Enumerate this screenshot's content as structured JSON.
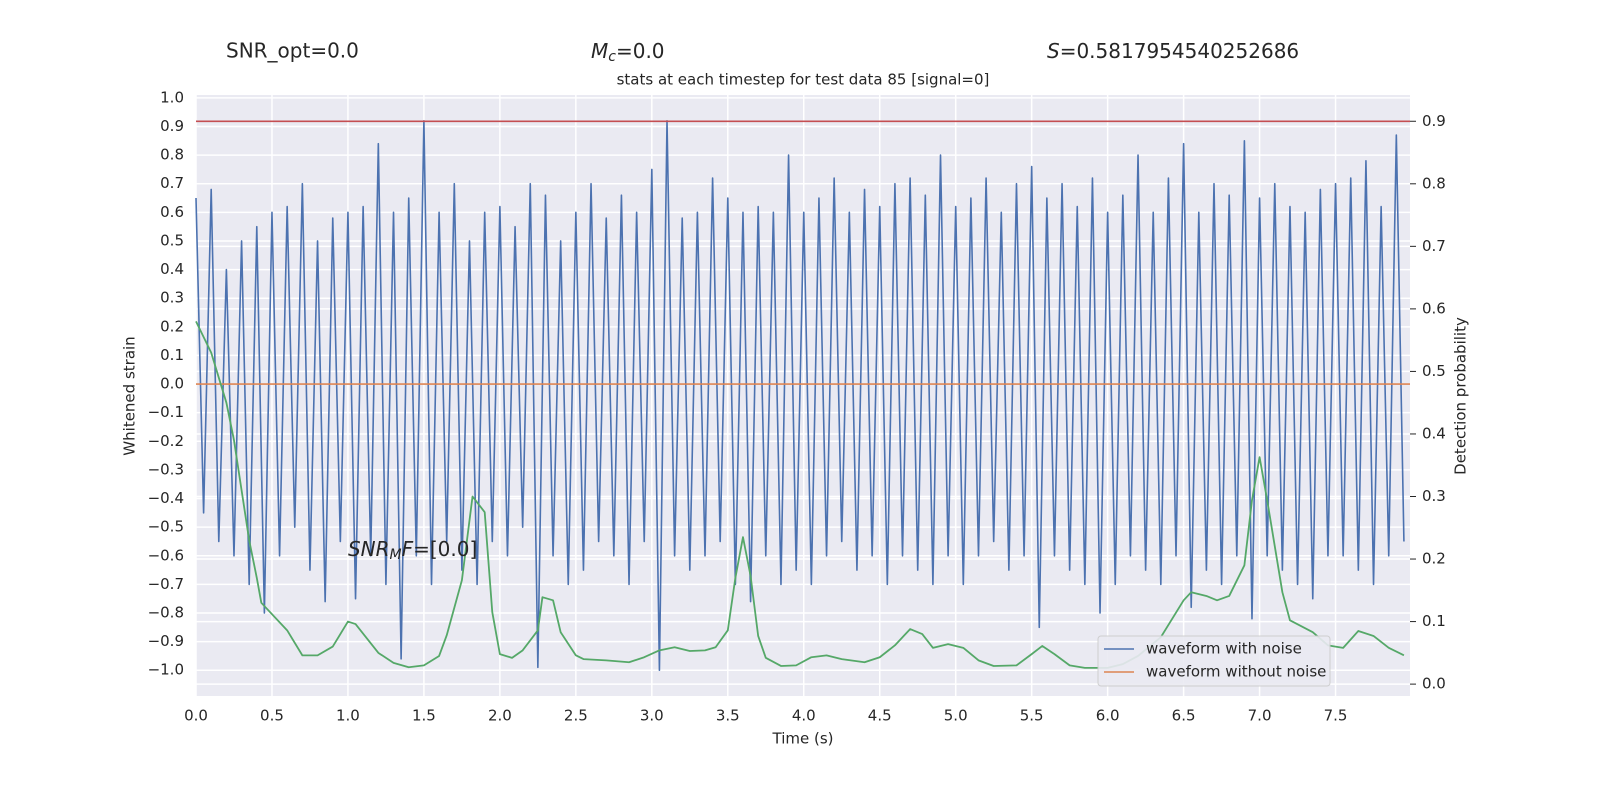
{
  "chart_data": {
    "type": "line",
    "title": "stats at each timestep for test data 85 [signal=0]",
    "header_texts": [
      {
        "text": "SNR_opt=0.0"
      },
      {
        "math": "M",
        "sub": "c",
        "text": "=0.0"
      },
      {
        "math": "S",
        "text": "=0.5817954540252686"
      }
    ],
    "annotation": {
      "math": "SNR",
      "sub": "M",
      "math2": "F",
      "text": "=[0.0]",
      "x": 1.0,
      "y": -0.58
    },
    "x_label": "Time (s)",
    "y_label": "Whitened strain",
    "y2_label": "Detection probability",
    "xlim": [
      0,
      7.99
    ],
    "ylim": [
      -1.09,
      1.01
    ],
    "y2lim": [
      -0.019,
      0.942
    ],
    "grid": true,
    "legend": "lower right",
    "xticks": [
      {
        "value": 0,
        "label": "0.0"
      },
      {
        "value": 0.5,
        "label": "0.5"
      },
      {
        "value": 1,
        "label": "1.0"
      },
      {
        "value": 1.5,
        "label": "1.5"
      },
      {
        "value": 2,
        "label": "2.0"
      },
      {
        "value": 2.5,
        "label": "2.5"
      },
      {
        "value": 3,
        "label": "3.0"
      },
      {
        "value": 3.5,
        "label": "3.5"
      },
      {
        "value": 4,
        "label": "4.0"
      },
      {
        "value": 4.5,
        "label": "4.5"
      },
      {
        "value": 5,
        "label": "5.0"
      },
      {
        "value": 5.5,
        "label": "5.5"
      },
      {
        "value": 6,
        "label": "6.0"
      },
      {
        "value": 6.5,
        "label": "6.5"
      },
      {
        "value": 7,
        "label": "7.0"
      },
      {
        "value": 7.5,
        "label": "7.5"
      }
    ],
    "yticks": [
      {
        "value": -1,
        "label": "−1.0"
      },
      {
        "value": -0.9,
        "label": "−0.9"
      },
      {
        "value": -0.8,
        "label": "−0.8"
      },
      {
        "value": -0.7,
        "label": "−0.7"
      },
      {
        "value": -0.6,
        "label": "−0.6"
      },
      {
        "value": -0.5,
        "label": "−0.5"
      },
      {
        "value": -0.4,
        "label": "−0.4"
      },
      {
        "value": -0.3,
        "label": "−0.3"
      },
      {
        "value": -0.2,
        "label": "−0.2"
      },
      {
        "value": -0.1,
        "label": "−0.1"
      },
      {
        "value": 0,
        "label": "0.0"
      },
      {
        "value": 0.1,
        "label": "0.1"
      },
      {
        "value": 0.2,
        "label": "0.2"
      },
      {
        "value": 0.3,
        "label": "0.3"
      },
      {
        "value": 0.4,
        "label": "0.4"
      },
      {
        "value": 0.5,
        "label": "0.5"
      },
      {
        "value": 0.6,
        "label": "0.6"
      },
      {
        "value": 0.7,
        "label": "0.7"
      },
      {
        "value": 0.8,
        "label": "0.8"
      },
      {
        "value": 0.9,
        "label": "0.9"
      },
      {
        "value": 1,
        "label": "1.0"
      }
    ],
    "y2ticks": [
      {
        "value": 0,
        "label": "0.0"
      },
      {
        "value": 0.1,
        "label": "0.1"
      },
      {
        "value": 0.2,
        "label": "0.2"
      },
      {
        "value": 0.3,
        "label": "0.3"
      },
      {
        "value": 0.4,
        "label": "0.4"
      },
      {
        "value": 0.5,
        "label": "0.5"
      },
      {
        "value": 0.6,
        "label": "0.6"
      },
      {
        "value": 0.7,
        "label": "0.7"
      },
      {
        "value": 0.8,
        "label": "0.8"
      },
      {
        "value": 0.9,
        "label": "0.9"
      }
    ],
    "series": [
      {
        "name": "waveform with noise",
        "color": "#4c72b0",
        "x": [
          0,
          0.05,
          0.1,
          0.15,
          0.2,
          0.25,
          0.3,
          0.35,
          0.4,
          0.45,
          0.5,
          0.55,
          0.6,
          0.65,
          0.7,
          0.75,
          0.8,
          0.85,
          0.9,
          0.95,
          1,
          1.05,
          1.1,
          1.15,
          1.2,
          1.25,
          1.3,
          1.35,
          1.4,
          1.45,
          1.5,
          1.55,
          1.6,
          1.65,
          1.7,
          1.75,
          1.8,
          1.85,
          1.9,
          1.95,
          2,
          2.05,
          2.1,
          2.15,
          2.2,
          2.25,
          2.3,
          2.35,
          2.4,
          2.45,
          2.5,
          2.55,
          2.6,
          2.65,
          2.7,
          2.75,
          2.8,
          2.85,
          2.9,
          2.95,
          3,
          3.05,
          3.1,
          3.15,
          3.2,
          3.25,
          3.3,
          3.35,
          3.4,
          3.45,
          3.5,
          3.55,
          3.6,
          3.65,
          3.7,
          3.75,
          3.8,
          3.85,
          3.9,
          3.95,
          4,
          4.05,
          4.1,
          4.15,
          4.2,
          4.25,
          4.3,
          4.35,
          4.4,
          4.45,
          4.5,
          4.55,
          4.6,
          4.65,
          4.7,
          4.75,
          4.8,
          4.85,
          4.9,
          4.95,
          5,
          5.05,
          5.1,
          5.15,
          5.2,
          5.25,
          5.3,
          5.35,
          5.4,
          5.45,
          5.5,
          5.55,
          5.6,
          5.65,
          5.7,
          5.75,
          5.8,
          5.85,
          5.9,
          5.95,
          6,
          6.05,
          6.1,
          6.15,
          6.2,
          6.25,
          6.3,
          6.35,
          6.4,
          6.45,
          6.5,
          6.55,
          6.6,
          6.65,
          6.7,
          6.75,
          6.8,
          6.85,
          6.9,
          6.95,
          7,
          7.05,
          7.1,
          7.15,
          7.2,
          7.25,
          7.3,
          7.35,
          7.4,
          7.45,
          7.5,
          7.55,
          7.6,
          7.65,
          7.7,
          7.75,
          7.8,
          7.85,
          7.9,
          7.95
        ],
        "values": [
          0.65,
          -0.45,
          0.68,
          -0.55,
          0.4,
          -0.6,
          0.5,
          -0.7,
          0.55,
          -0.8,
          0.6,
          -0.6,
          0.62,
          -0.5,
          0.7,
          -0.65,
          0.5,
          -0.76,
          0.58,
          -0.55,
          0.6,
          -0.75,
          0.62,
          -0.6,
          0.84,
          -0.7,
          0.6,
          -0.96,
          0.65,
          -0.6,
          0.92,
          -0.7,
          0.6,
          -0.55,
          0.7,
          -0.65,
          0.5,
          -0.7,
          0.6,
          -0.55,
          0.62,
          -0.6,
          0.55,
          -0.5,
          0.7,
          -0.99,
          0.66,
          -0.6,
          0.5,
          -0.7,
          0.6,
          -0.65,
          0.7,
          -0.55,
          0.58,
          -0.6,
          0.66,
          -0.7,
          0.6,
          -0.55,
          0.75,
          -1.0,
          0.92,
          -0.6,
          0.58,
          -0.65,
          0.6,
          -0.6,
          0.72,
          -0.55,
          0.65,
          -0.7,
          0.6,
          -0.76,
          0.62,
          -0.6,
          0.6,
          -0.7,
          0.8,
          -0.65,
          0.6,
          -0.7,
          0.65,
          -0.6,
          0.72,
          -0.55,
          0.6,
          -0.65,
          0.68,
          -0.6,
          0.62,
          -0.7,
          0.7,
          -0.6,
          0.72,
          -0.65,
          0.66,
          -0.7,
          0.8,
          -0.6,
          0.62,
          -0.7,
          0.65,
          -0.6,
          0.72,
          -0.55,
          0.6,
          -0.65,
          0.7,
          -0.6,
          0.76,
          -0.85,
          0.65,
          -0.6,
          0.7,
          -0.65,
          0.62,
          -0.7,
          0.72,
          -0.8,
          0.6,
          -0.7,
          0.66,
          -0.6,
          0.8,
          -0.65,
          0.6,
          -0.7,
          0.72,
          -0.6,
          0.84,
          -0.78,
          0.6,
          -0.65,
          0.7,
          -0.7,
          0.66,
          -0.6,
          0.85,
          -0.82,
          0.65,
          -0.6,
          0.7,
          -0.65,
          0.62,
          -0.7,
          0.6,
          -0.75,
          0.68,
          -0.6,
          0.7,
          -0.6,
          0.72,
          -0.65,
          0.78,
          -0.7,
          0.62,
          -0.6,
          0.87,
          -0.55
        ]
      },
      {
        "name": "waveform without noise",
        "color": "#dd8452",
        "x": [
          0,
          7.99
        ],
        "values": [
          0,
          0
        ]
      }
    ],
    "probability": {
      "axis": "y2",
      "color": "#55a868",
      "x": [
        0,
        0.1,
        0.2,
        0.25,
        0.3,
        0.35,
        0.4,
        0.43,
        0.6,
        0.7,
        0.8,
        0.9,
        1,
        1.05,
        1.2,
        1.3,
        1.4,
        1.5,
        1.6,
        1.65,
        1.75,
        1.82,
        1.9,
        1.95,
        2,
        2.08,
        2.15,
        2.25,
        2.28,
        2.35,
        2.4,
        2.5,
        2.55,
        2.7,
        2.85,
        2.95,
        3.05,
        3.15,
        3.25,
        3.35,
        3.42,
        3.5,
        3.55,
        3.6,
        3.65,
        3.7,
        3.75,
        3.85,
        3.95,
        4.05,
        4.15,
        4.25,
        4.4,
        4.5,
        4.6,
        4.7,
        4.78,
        4.85,
        4.95,
        5.05,
        5.15,
        5.25,
        5.4,
        5.5,
        5.57,
        5.65,
        5.75,
        5.85,
        6,
        6.1,
        6.2,
        6.35,
        6.5,
        6.55,
        6.65,
        6.72,
        6.8,
        6.9,
        6.95,
        7,
        7.05,
        7.15,
        7.2,
        7.35,
        7.45,
        7.55,
        7.65,
        7.75,
        7.85,
        7.95
      ],
      "values": [
        0.58,
        0.53,
        0.45,
        0.39,
        0.31,
        0.23,
        0.17,
        0.13,
        0.086,
        0.046,
        0.046,
        0.06,
        0.1,
        0.096,
        0.05,
        0.034,
        0.027,
        0.03,
        0.045,
        0.078,
        0.166,
        0.3,
        0.275,
        0.115,
        0.048,
        0.042,
        0.054,
        0.086,
        0.139,
        0.134,
        0.083,
        0.046,
        0.04,
        0.038,
        0.035,
        0.043,
        0.054,
        0.059,
        0.053,
        0.054,
        0.059,
        0.086,
        0.17,
        0.235,
        0.173,
        0.077,
        0.042,
        0.029,
        0.03,
        0.043,
        0.046,
        0.04,
        0.035,
        0.043,
        0.062,
        0.088,
        0.08,
        0.058,
        0.064,
        0.058,
        0.038,
        0.029,
        0.03,
        0.048,
        0.061,
        0.048,
        0.03,
        0.026,
        0.026,
        0.032,
        0.045,
        0.075,
        0.134,
        0.147,
        0.141,
        0.134,
        0.141,
        0.19,
        0.294,
        0.363,
        0.294,
        0.147,
        0.102,
        0.083,
        0.062,
        0.058,
        0.085,
        0.077,
        0.058,
        0.046
      ]
    },
    "threshold": {
      "axis": "y2",
      "value": 0.9,
      "color": "#c44e52"
    }
  }
}
